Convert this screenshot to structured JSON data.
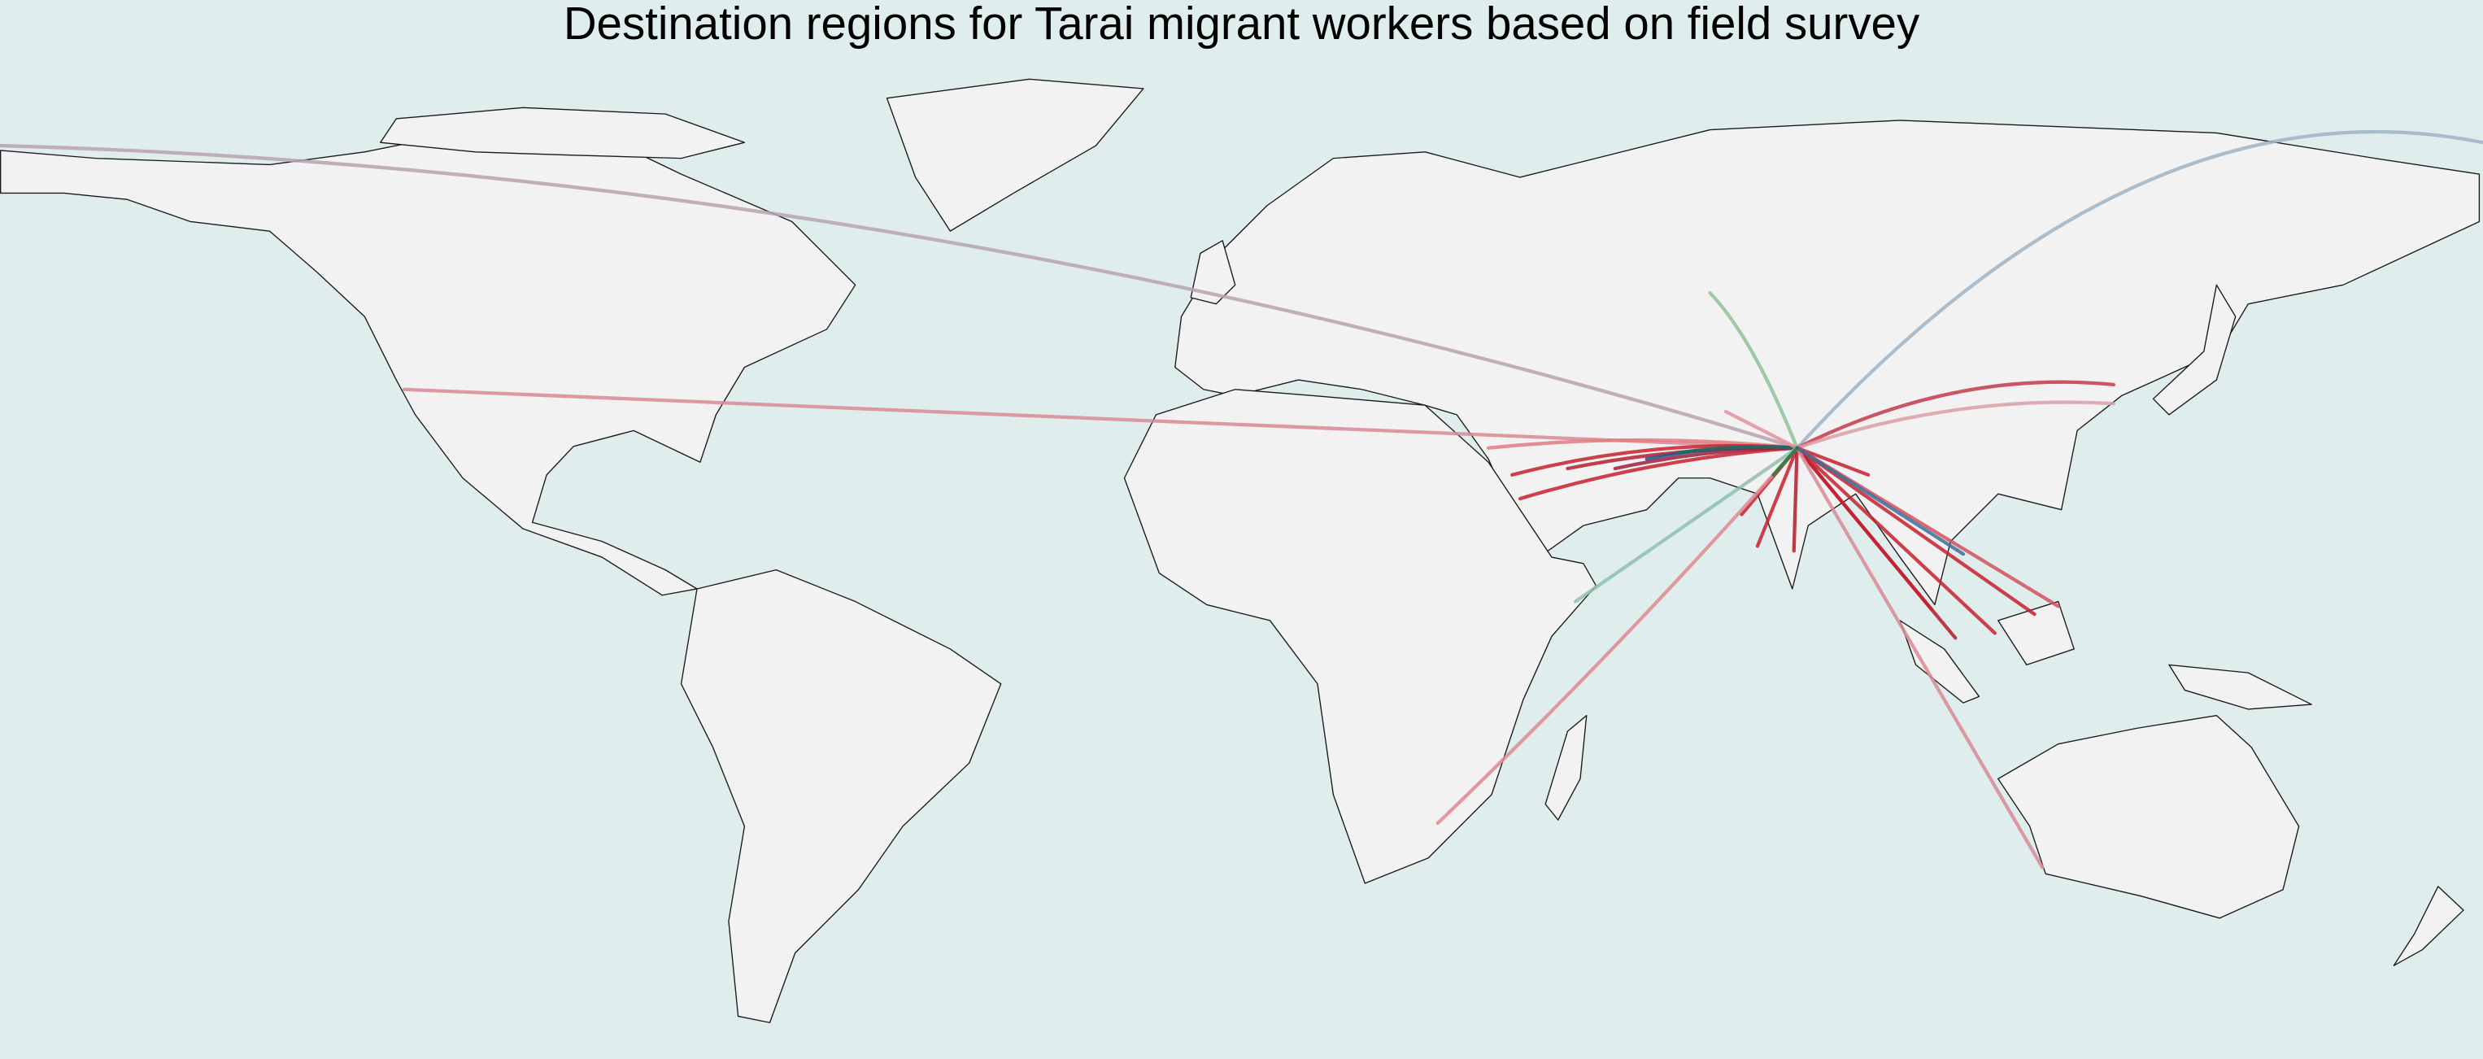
{
  "title": "Destination regions for Tarai migrant workers based on field survey"
}
